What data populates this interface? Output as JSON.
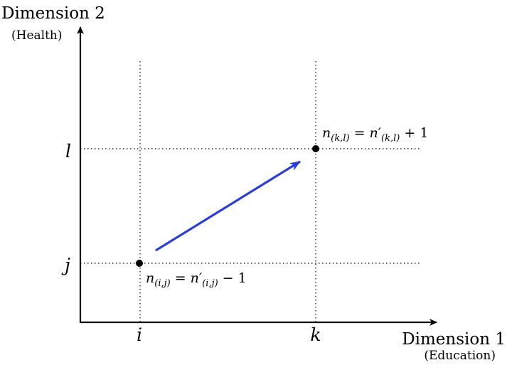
{
  "axes": {
    "x": {
      "title": "Dimension 1",
      "subtitle": "(Education)",
      "ticks": [
        "i",
        "k"
      ]
    },
    "y": {
      "title": "Dimension 2",
      "subtitle": "(Health)",
      "ticks": [
        "j",
        "l"
      ]
    }
  },
  "points": [
    {
      "id": "origin-cell",
      "coords": [
        "i",
        "j"
      ],
      "label": {
        "n": "n",
        "sub": "(i,j)",
        "eq": "=",
        "n_prime": "n′",
        "sub_prime": "(i,j)",
        "op": "− 1"
      }
    },
    {
      "id": "destination-cell",
      "coords": [
        "k",
        "l"
      ],
      "label": {
        "n": "n",
        "sub": "(k,l)",
        "eq": "=",
        "n_prime": "n′",
        "sub_prime": "(k,l)",
        "op": "+ 1"
      }
    }
  ],
  "colors": {
    "arrow": "#2a3de0",
    "axis": "#000000",
    "gridline": "#000000",
    "point": "#000000"
  }
}
